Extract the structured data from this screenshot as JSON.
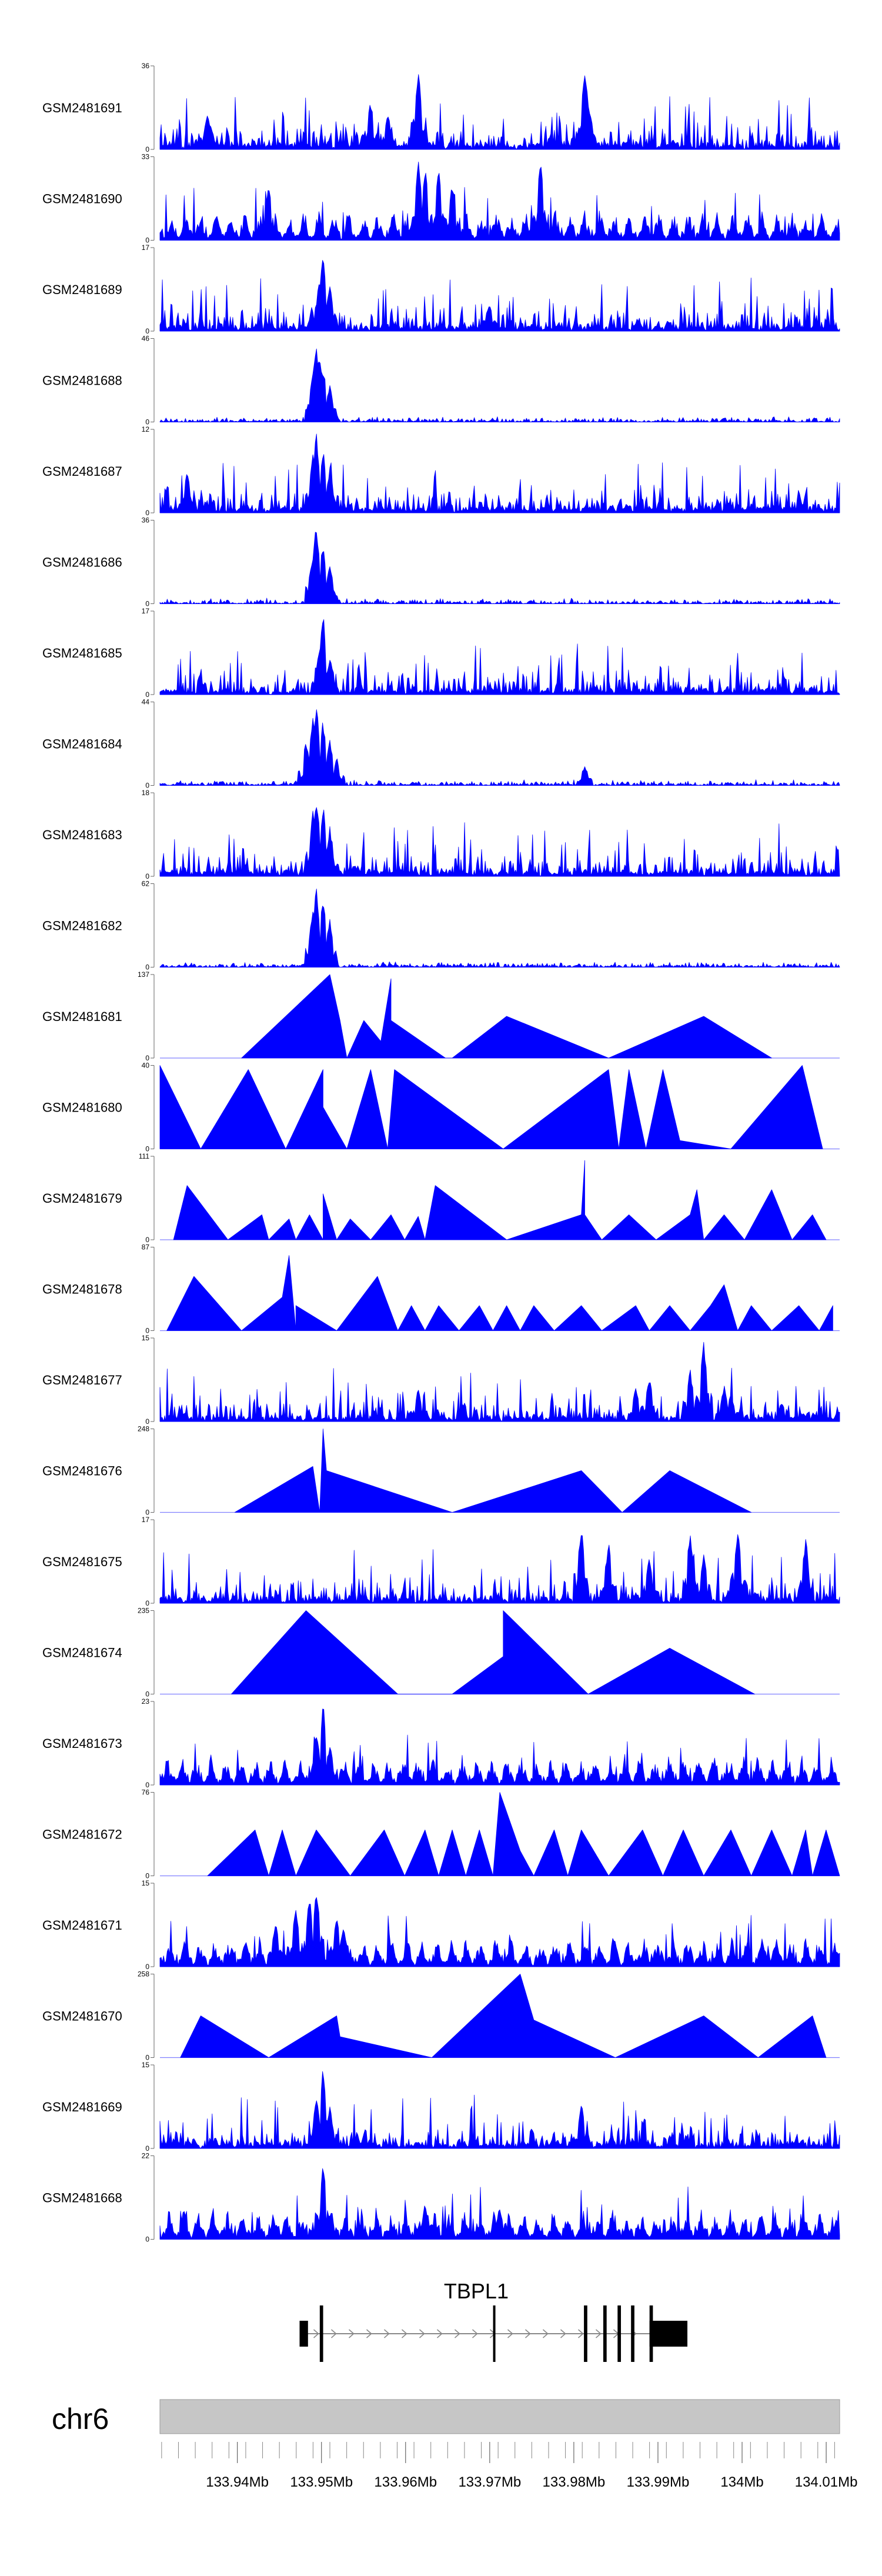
{
  "chart_data": {
    "type": "area",
    "title": "",
    "color": "#0000ff",
    "tracks": [
      {
        "name": "GSM2481691",
        "max": 36,
        "min": 0,
        "pattern": "noise",
        "seed": 1,
        "peaks": [
          [
            0.07,
            0.42
          ],
          [
            0.075,
            0.28
          ],
          [
            0.31,
            0.6
          ],
          [
            0.335,
            0.45
          ],
          [
            0.38,
            1.0
          ],
          [
            0.62,
            0.3
          ],
          [
            0.625,
            1.0
          ],
          [
            0.63,
            0.6
          ]
        ]
      },
      {
        "name": "GSM2481690",
        "max": 33,
        "min": 0,
        "pattern": "tri-noise",
        "seed": 2,
        "peaks": [
          [
            0.38,
            1.0
          ],
          [
            0.39,
            0.9
          ],
          [
            0.41,
            0.9
          ],
          [
            0.56,
            1.0
          ],
          [
            0.16,
            0.7
          ],
          [
            0.43,
            0.7
          ]
        ]
      },
      {
        "name": "GSM2481689",
        "max": 17,
        "min": 0,
        "pattern": "noise",
        "seed": 3,
        "peaks": [
          [
            0.235,
            0.65
          ],
          [
            0.24,
            1.0
          ],
          [
            0.25,
            0.55
          ],
          [
            0.485,
            0.35
          ]
        ]
      },
      {
        "name": "GSM2481688",
        "max": 46,
        "min": 0,
        "pattern": "noise-low",
        "seed": 4,
        "peaks": [
          [
            0.225,
            0.6
          ],
          [
            0.23,
            1.0
          ],
          [
            0.235,
            0.85
          ],
          [
            0.24,
            0.7
          ],
          [
            0.25,
            0.45
          ]
        ]
      },
      {
        "name": "GSM2481687",
        "max": 12,
        "min": 0,
        "pattern": "noise",
        "seed": 5,
        "peaks": [
          [
            0.04,
            0.55
          ],
          [
            0.225,
            0.7
          ],
          [
            0.23,
            1.0
          ],
          [
            0.24,
            0.8
          ],
          [
            0.25,
            0.55
          ]
        ]
      },
      {
        "name": "GSM2481686",
        "max": 36,
        "min": 0,
        "pattern": "noise-low",
        "seed": 6,
        "peaks": [
          [
            0.225,
            0.6
          ],
          [
            0.23,
            1.0
          ],
          [
            0.24,
            0.75
          ],
          [
            0.25,
            0.5
          ]
        ]
      },
      {
        "name": "GSM2481685",
        "max": 17,
        "min": 0,
        "pattern": "noise",
        "seed": 7,
        "peaks": [
          [
            0.235,
            0.6
          ],
          [
            0.24,
            1.0
          ],
          [
            0.25,
            0.45
          ]
        ]
      },
      {
        "name": "GSM2481684",
        "max": 44,
        "min": 0,
        "pattern": "noise-low",
        "seed": 8,
        "peaks": [
          [
            0.215,
            0.55
          ],
          [
            0.225,
            0.85
          ],
          [
            0.23,
            1.0
          ],
          [
            0.24,
            0.8
          ],
          [
            0.25,
            0.55
          ],
          [
            0.26,
            0.35
          ],
          [
            0.625,
            0.25
          ]
        ]
      },
      {
        "name": "GSM2481683",
        "max": 18,
        "min": 0,
        "pattern": "noise",
        "seed": 9,
        "peaks": [
          [
            0.225,
            0.8
          ],
          [
            0.23,
            1.0
          ],
          [
            0.24,
            0.9
          ],
          [
            0.25,
            0.6
          ]
        ]
      },
      {
        "name": "GSM2481682",
        "max": 62,
        "min": 0,
        "pattern": "noise-low",
        "seed": 10,
        "peaks": [
          [
            0.225,
            0.7
          ],
          [
            0.23,
            1.0
          ],
          [
            0.24,
            0.85
          ],
          [
            0.25,
            0.6
          ]
        ]
      },
      {
        "name": "GSM2481681",
        "max": 137,
        "min": 0,
        "pattern": "triangles",
        "seed": 11,
        "points": [
          [
            0.12,
            0
          ],
          [
            0.25,
            1.0
          ],
          [
            0.265,
            0.45
          ],
          [
            0.275,
            0
          ],
          [
            0.3,
            0.45
          ],
          [
            0.325,
            0.2
          ],
          [
            0.34,
            0.95
          ],
          [
            0.34,
            0.45
          ],
          [
            0.42,
            0
          ],
          [
            0.43,
            0
          ],
          [
            0.51,
            0.5
          ],
          [
            0.66,
            0
          ],
          [
            0.8,
            0.5
          ],
          [
            0.9,
            0
          ]
        ]
      },
      {
        "name": "GSM2481680",
        "max": 40,
        "min": 0,
        "pattern": "triangles",
        "seed": 12,
        "points": [
          [
            0.0,
            1.0
          ],
          [
            0.06,
            0
          ],
          [
            0.13,
            0.95
          ],
          [
            0.185,
            0
          ],
          [
            0.24,
            0.95
          ],
          [
            0.24,
            0.5
          ],
          [
            0.275,
            0
          ],
          [
            0.31,
            0.95
          ],
          [
            0.335,
            0
          ],
          [
            0.345,
            0.95
          ],
          [
            0.505,
            0
          ],
          [
            0.66,
            0.95
          ],
          [
            0.665,
            0.65
          ],
          [
            0.675,
            0
          ],
          [
            0.69,
            0.95
          ],
          [
            0.715,
            0
          ],
          [
            0.74,
            0.95
          ],
          [
            0.765,
            0.1
          ],
          [
            0.84,
            0
          ],
          [
            0.945,
            1.0
          ],
          [
            0.975,
            0
          ]
        ]
      },
      {
        "name": "GSM2481679",
        "max": 111,
        "min": 0,
        "pattern": "triangles",
        "seed": 13,
        "points": [
          [
            0.02,
            0
          ],
          [
            0.04,
            0.65
          ],
          [
            0.1,
            0
          ],
          [
            0.15,
            0.3
          ],
          [
            0.16,
            0
          ],
          [
            0.19,
            0.25
          ],
          [
            0.2,
            0
          ],
          [
            0.22,
            0.3
          ],
          [
            0.24,
            0
          ],
          [
            0.24,
            0.55
          ],
          [
            0.26,
            0
          ],
          [
            0.28,
            0.25
          ],
          [
            0.31,
            0
          ],
          [
            0.34,
            0.3
          ],
          [
            0.36,
            0
          ],
          [
            0.38,
            0.28
          ],
          [
            0.39,
            0
          ],
          [
            0.405,
            0.65
          ],
          [
            0.51,
            0
          ],
          [
            0.62,
            0.3
          ],
          [
            0.625,
            0.95
          ],
          [
            0.625,
            0.3
          ],
          [
            0.65,
            0
          ],
          [
            0.69,
            0.3
          ],
          [
            0.73,
            0
          ],
          [
            0.78,
            0.3
          ],
          [
            0.79,
            0.6
          ],
          [
            0.8,
            0
          ],
          [
            0.83,
            0.3
          ],
          [
            0.86,
            0
          ],
          [
            0.9,
            0.6
          ],
          [
            0.93,
            0
          ],
          [
            0.96,
            0.3
          ],
          [
            0.98,
            0
          ]
        ]
      },
      {
        "name": "GSM2481678",
        "max": 87,
        "min": 0,
        "pattern": "triangles",
        "seed": 14,
        "points": [
          [
            0.01,
            0
          ],
          [
            0.05,
            0.65
          ],
          [
            0.12,
            0
          ],
          [
            0.18,
            0.4
          ],
          [
            0.19,
            0.9
          ],
          [
            0.2,
            0
          ],
          [
            0.2,
            0.3
          ],
          [
            0.26,
            0
          ],
          [
            0.32,
            0.65
          ],
          [
            0.35,
            0
          ],
          [
            0.37,
            0.3
          ],
          [
            0.39,
            0
          ],
          [
            0.41,
            0.3
          ],
          [
            0.44,
            0
          ],
          [
            0.47,
            0.3
          ],
          [
            0.49,
            0
          ],
          [
            0.51,
            0.3
          ],
          [
            0.53,
            0
          ],
          [
            0.55,
            0.3
          ],
          [
            0.58,
            0
          ],
          [
            0.62,
            0.3
          ],
          [
            0.65,
            0
          ],
          [
            0.7,
            0.3
          ],
          [
            0.72,
            0
          ],
          [
            0.75,
            0.3
          ],
          [
            0.78,
            0
          ],
          [
            0.81,
            0.3
          ],
          [
            0.83,
            0.55
          ],
          [
            0.85,
            0
          ],
          [
            0.87,
            0.3
          ],
          [
            0.9,
            0
          ],
          [
            0.94,
            0.3
          ],
          [
            0.97,
            0
          ],
          [
            0.99,
            0.3
          ]
        ]
      },
      {
        "name": "GSM2481677",
        "max": 15,
        "min": 0,
        "pattern": "noise",
        "seed": 15,
        "peaks": [
          [
            0.38,
            0.4
          ],
          [
            0.7,
            0.45
          ],
          [
            0.72,
            0.55
          ],
          [
            0.78,
            0.65
          ],
          [
            0.79,
            0.35
          ],
          [
            0.8,
            1.0
          ],
          [
            0.83,
            0.45
          ],
          [
            0.84,
            0.35
          ]
        ]
      },
      {
        "name": "GSM2481676",
        "max": 248,
        "min": 0,
        "pattern": "triangles",
        "seed": 16,
        "points": [
          [
            0.11,
            0
          ],
          [
            0.225,
            0.55
          ],
          [
            0.235,
            0
          ],
          [
            0.24,
            1.0
          ],
          [
            0.245,
            0.5
          ],
          [
            0.43,
            0
          ],
          [
            0.62,
            0.5
          ],
          [
            0.68,
            0
          ],
          [
            0.75,
            0.5
          ],
          [
            0.87,
            0
          ]
        ]
      },
      {
        "name": "GSM2481675",
        "max": 17,
        "min": 0,
        "pattern": "noise",
        "seed": 17,
        "peaks": [
          [
            0.62,
            0.95
          ],
          [
            0.66,
            0.75
          ],
          [
            0.72,
            0.6
          ],
          [
            0.78,
            0.9
          ],
          [
            0.8,
            0.6
          ],
          [
            0.85,
            0.95
          ],
          [
            0.95,
            0.8
          ]
        ]
      },
      {
        "name": "GSM2481674",
        "max": 235,
        "min": 0,
        "pattern": "triangles",
        "seed": 18,
        "points": [
          [
            0.105,
            0
          ],
          [
            0.215,
            1.0
          ],
          [
            0.35,
            0
          ],
          [
            0.43,
            0
          ],
          [
            0.505,
            0.45
          ],
          [
            0.505,
            1.0
          ],
          [
            0.63,
            0
          ],
          [
            0.75,
            0.55
          ],
          [
            0.875,
            0
          ]
        ]
      },
      {
        "name": "GSM2481673",
        "max": 23,
        "min": 0,
        "pattern": "tri-noise",
        "seed": 19,
        "peaks": [
          [
            0.23,
            0.65
          ],
          [
            0.24,
            1.0
          ],
          [
            0.25,
            0.5
          ]
        ]
      },
      {
        "name": "GSM2481672",
        "max": 76,
        "min": 0,
        "pattern": "triangles",
        "seed": 20,
        "points": [
          [
            0.07,
            0
          ],
          [
            0.14,
            0.55
          ],
          [
            0.16,
            0
          ],
          [
            0.18,
            0.55
          ],
          [
            0.2,
            0
          ],
          [
            0.23,
            0.55
          ],
          [
            0.28,
            0
          ],
          [
            0.33,
            0.55
          ],
          [
            0.36,
            0
          ],
          [
            0.39,
            0.55
          ],
          [
            0.41,
            0
          ],
          [
            0.43,
            0.55
          ],
          [
            0.45,
            0
          ],
          [
            0.47,
            0.55
          ],
          [
            0.49,
            0
          ],
          [
            0.5,
            1.0
          ],
          [
            0.53,
            0.3
          ],
          [
            0.55,
            0
          ],
          [
            0.58,
            0.55
          ],
          [
            0.6,
            0
          ],
          [
            0.62,
            0.55
          ],
          [
            0.66,
            0
          ],
          [
            0.71,
            0.55
          ],
          [
            0.74,
            0
          ],
          [
            0.77,
            0.55
          ],
          [
            0.8,
            0
          ],
          [
            0.84,
            0.55
          ],
          [
            0.87,
            0
          ],
          [
            0.9,
            0.55
          ],
          [
            0.93,
            0
          ],
          [
            0.95,
            0.55
          ],
          [
            0.96,
            0
          ],
          [
            0.98,
            0.55
          ],
          [
            1.0,
            0
          ]
        ]
      },
      {
        "name": "GSM2481671",
        "max": 15,
        "min": 0,
        "pattern": "tri-noise",
        "seed": 21,
        "peaks": [
          [
            0.2,
            0.75
          ],
          [
            0.22,
            0.9
          ],
          [
            0.23,
            1.0
          ],
          [
            0.26,
            0.65
          ],
          [
            0.27,
            0.5
          ],
          [
            0.17,
            0.55
          ]
        ]
      },
      {
        "name": "GSM2481670",
        "max": 258,
        "min": 0,
        "pattern": "triangles",
        "seed": 22,
        "points": [
          [
            0.03,
            0
          ],
          [
            0.06,
            0.5
          ],
          [
            0.16,
            0
          ],
          [
            0.26,
            0.5
          ],
          [
            0.265,
            0.25
          ],
          [
            0.4,
            0
          ],
          [
            0.53,
            1.0
          ],
          [
            0.55,
            0.45
          ],
          [
            0.67,
            0
          ],
          [
            0.8,
            0.5
          ],
          [
            0.88,
            0
          ],
          [
            0.96,
            0.5
          ],
          [
            0.98,
            0
          ]
        ]
      },
      {
        "name": "GSM2481669",
        "max": 15,
        "min": 0,
        "pattern": "noise",
        "seed": 23,
        "peaks": [
          [
            0.23,
            0.65
          ],
          [
            0.24,
            1.0
          ],
          [
            0.25,
            0.5
          ],
          [
            0.62,
            0.55
          ]
        ]
      },
      {
        "name": "GSM2481668",
        "max": 22,
        "min": 0,
        "pattern": "tri-noise",
        "seed": 24,
        "peaks": [
          [
            0.24,
            1.0
          ],
          [
            0.39,
            0.45
          ],
          [
            0.5,
            0.4
          ]
        ]
      }
    ],
    "gene": {
      "name": "TBPL1",
      "start": 133.9474,
      "end": 133.9894,
      "exons": [
        [
          133.9474,
          133.9484
        ],
        [
          133.9498,
          133.9502
        ],
        [
          133.9704,
          133.9706
        ],
        [
          133.9812,
          133.9816
        ],
        [
          133.9835,
          133.9839
        ],
        [
          133.9852,
          133.9856
        ],
        [
          133.9868,
          133.9872
        ],
        [
          133.989,
          133.9894
        ]
      ],
      "cds_start": 133.989,
      "thick_end": 133.9935,
      "strand": "+"
    },
    "ideogram": {
      "chromosome": "chr6",
      "xlim": [
        133.9308,
        134.0116
      ],
      "tick_labels": [
        "133.94Mb",
        "133.95Mb",
        "133.96Mb",
        "133.97Mb",
        "133.98Mb",
        "133.99Mb",
        "134Mb",
        "134.01Mb"
      ],
      "tick_values": [
        133.94,
        133.95,
        133.96,
        133.97,
        133.98,
        133.99,
        134.0,
        134.01
      ]
    }
  }
}
